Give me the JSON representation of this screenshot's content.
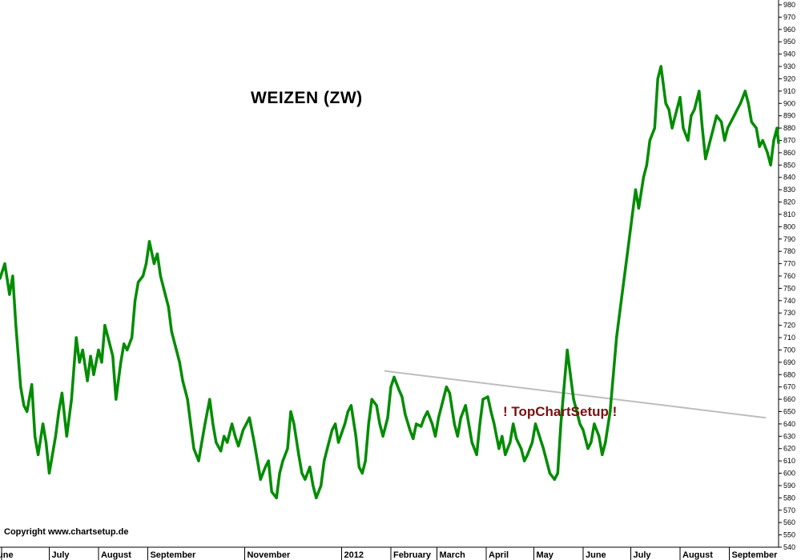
{
  "chart_data": {
    "type": "line",
    "title": "WEIZEN (ZW)",
    "copyright": "Copyright www.chartsetup.de",
    "watermark": "! TopChartSetup !",
    "ylim": [
      540,
      980
    ],
    "y_tick_step": 10,
    "x_tick_labels": [
      {
        "label": "une",
        "date": "2011-06-01"
      },
      {
        "label": "July",
        "date": "2011-07-01"
      },
      {
        "label": "August",
        "date": "2011-08-01"
      },
      {
        "label": "September",
        "date": "2011-09-01"
      },
      {
        "label": "November",
        "date": "2011-11-01"
      },
      {
        "label": "2012",
        "date": "2012-01-01"
      },
      {
        "label": "February",
        "date": "2012-02-01"
      },
      {
        "label": "March",
        "date": "2012-03-01"
      },
      {
        "label": "April",
        "date": "2012-04-01"
      },
      {
        "label": "May",
        "date": "2012-05-01"
      },
      {
        "label": "June",
        "date": "2012-06-01"
      },
      {
        "label": "July",
        "date": "2012-07-01"
      },
      {
        "label": "August",
        "date": "2012-08-01"
      },
      {
        "label": "September",
        "date": "2012-09-01"
      }
    ],
    "x_range": [
      "2011-05-31",
      "2012-10-02"
    ],
    "series": [
      {
        "color": "#008c00",
        "points": [
          [
            "2011-05-31",
            758
          ],
          [
            "2011-06-03",
            770
          ],
          [
            "2011-06-06",
            745
          ],
          [
            "2011-06-08",
            760
          ],
          [
            "2011-06-10",
            720
          ],
          [
            "2011-06-13",
            670
          ],
          [
            "2011-06-15",
            655
          ],
          [
            "2011-06-17",
            650
          ],
          [
            "2011-06-20",
            672
          ],
          [
            "2011-06-22",
            630
          ],
          [
            "2011-06-24",
            615
          ],
          [
            "2011-06-27",
            640
          ],
          [
            "2011-06-29",
            625
          ],
          [
            "2011-07-01",
            600
          ],
          [
            "2011-07-05",
            630
          ],
          [
            "2011-07-07",
            650
          ],
          [
            "2011-07-09",
            665
          ],
          [
            "2011-07-12",
            630
          ],
          [
            "2011-07-15",
            660
          ],
          [
            "2011-07-18",
            710
          ],
          [
            "2011-07-20",
            690
          ],
          [
            "2011-07-22",
            700
          ],
          [
            "2011-07-25",
            675
          ],
          [
            "2011-07-27",
            695
          ],
          [
            "2011-07-29",
            680
          ],
          [
            "2011-08-01",
            700
          ],
          [
            "2011-08-03",
            690
          ],
          [
            "2011-08-05",
            720
          ],
          [
            "2011-08-08",
            705
          ],
          [
            "2011-08-10",
            695
          ],
          [
            "2011-08-12",
            660
          ],
          [
            "2011-08-15",
            690
          ],
          [
            "2011-08-17",
            705
          ],
          [
            "2011-08-19",
            700
          ],
          [
            "2011-08-22",
            710
          ],
          [
            "2011-08-24",
            740
          ],
          [
            "2011-08-26",
            755
          ],
          [
            "2011-08-29",
            760
          ],
          [
            "2011-08-31",
            770
          ],
          [
            "2011-09-02",
            788
          ],
          [
            "2011-09-05",
            770
          ],
          [
            "2011-09-07",
            778
          ],
          [
            "2011-09-09",
            760
          ],
          [
            "2011-09-12",
            745
          ],
          [
            "2011-09-14",
            735
          ],
          [
            "2011-09-16",
            715
          ],
          [
            "2011-09-19",
            700
          ],
          [
            "2011-09-21",
            690
          ],
          [
            "2011-09-23",
            675
          ],
          [
            "2011-09-26",
            660
          ],
          [
            "2011-09-28",
            640
          ],
          [
            "2011-09-30",
            620
          ],
          [
            "2011-10-03",
            610
          ],
          [
            "2011-10-05",
            625
          ],
          [
            "2011-10-07",
            640
          ],
          [
            "2011-10-10",
            660
          ],
          [
            "2011-10-12",
            640
          ],
          [
            "2011-10-14",
            625
          ],
          [
            "2011-10-17",
            618
          ],
          [
            "2011-10-19",
            630
          ],
          [
            "2011-10-21",
            625
          ],
          [
            "2011-10-24",
            640
          ],
          [
            "2011-10-26",
            630
          ],
          [
            "2011-10-28",
            622
          ],
          [
            "2011-10-31",
            635
          ],
          [
            "2011-11-02",
            640
          ],
          [
            "2011-11-04",
            645
          ],
          [
            "2011-11-07",
            625
          ],
          [
            "2011-11-09",
            610
          ],
          [
            "2011-11-11",
            595
          ],
          [
            "2011-11-14",
            605
          ],
          [
            "2011-11-16",
            610
          ],
          [
            "2011-11-18",
            585
          ],
          [
            "2011-11-21",
            580
          ],
          [
            "2011-11-23",
            600
          ],
          [
            "2011-11-25",
            610
          ],
          [
            "2011-11-28",
            620
          ],
          [
            "2011-11-30",
            650
          ],
          [
            "2011-12-02",
            640
          ],
          [
            "2011-12-05",
            615
          ],
          [
            "2011-12-07",
            600
          ],
          [
            "2011-12-09",
            595
          ],
          [
            "2011-12-12",
            605
          ],
          [
            "2011-12-14",
            590
          ],
          [
            "2011-12-16",
            580
          ],
          [
            "2011-12-19",
            590
          ],
          [
            "2011-12-21",
            610
          ],
          [
            "2011-12-23",
            620
          ],
          [
            "2011-12-26",
            635
          ],
          [
            "2011-12-28",
            640
          ],
          [
            "2011-12-30",
            625
          ],
          [
            "2012-01-03",
            640
          ],
          [
            "2012-01-05",
            650
          ],
          [
            "2012-01-07",
            655
          ],
          [
            "2012-01-10",
            630
          ],
          [
            "2012-01-12",
            605
          ],
          [
            "2012-01-14",
            600
          ],
          [
            "2012-01-16",
            610
          ],
          [
            "2012-01-18",
            640
          ],
          [
            "2012-01-20",
            660
          ],
          [
            "2012-01-23",
            655
          ],
          [
            "2012-01-25",
            640
          ],
          [
            "2012-01-27",
            630
          ],
          [
            "2012-01-30",
            645
          ],
          [
            "2012-02-01",
            670
          ],
          [
            "2012-02-03",
            678
          ],
          [
            "2012-02-06",
            668
          ],
          [
            "2012-02-08",
            662
          ],
          [
            "2012-02-10",
            648
          ],
          [
            "2012-02-13",
            635
          ],
          [
            "2012-02-15",
            628
          ],
          [
            "2012-02-17",
            640
          ],
          [
            "2012-02-20",
            638
          ],
          [
            "2012-02-22",
            645
          ],
          [
            "2012-02-24",
            650
          ],
          [
            "2012-02-27",
            640
          ],
          [
            "2012-02-29",
            630
          ],
          [
            "2012-03-02",
            645
          ],
          [
            "2012-03-05",
            660
          ],
          [
            "2012-03-07",
            670
          ],
          [
            "2012-03-09",
            665
          ],
          [
            "2012-03-12",
            640
          ],
          [
            "2012-03-14",
            630
          ],
          [
            "2012-03-16",
            645
          ],
          [
            "2012-03-19",
            655
          ],
          [
            "2012-03-21",
            640
          ],
          [
            "2012-03-23",
            625
          ],
          [
            "2012-03-26",
            615
          ],
          [
            "2012-03-28",
            640
          ],
          [
            "2012-03-30",
            660
          ],
          [
            "2012-04-02",
            662
          ],
          [
            "2012-04-04",
            650
          ],
          [
            "2012-04-06",
            640
          ],
          [
            "2012-04-09",
            620
          ],
          [
            "2012-04-11",
            630
          ],
          [
            "2012-04-13",
            615
          ],
          [
            "2012-04-16",
            625
          ],
          [
            "2012-04-18",
            640
          ],
          [
            "2012-04-20",
            628
          ],
          [
            "2012-04-23",
            620
          ],
          [
            "2012-04-25",
            610
          ],
          [
            "2012-04-27",
            615
          ],
          [
            "2012-04-30",
            625
          ],
          [
            "2012-05-02",
            640
          ],
          [
            "2012-05-04",
            632
          ],
          [
            "2012-05-07",
            620
          ],
          [
            "2012-05-09",
            610
          ],
          [
            "2012-05-11",
            600
          ],
          [
            "2012-05-14",
            595
          ],
          [
            "2012-05-16",
            600
          ],
          [
            "2012-05-18",
            640
          ],
          [
            "2012-05-20",
            670
          ],
          [
            "2012-05-22",
            700
          ],
          [
            "2012-05-24",
            680
          ],
          [
            "2012-05-26",
            660
          ],
          [
            "2012-05-28",
            650
          ],
          [
            "2012-05-30",
            640
          ],
          [
            "2012-06-01",
            635
          ],
          [
            "2012-06-04",
            620
          ],
          [
            "2012-06-06",
            625
          ],
          [
            "2012-06-08",
            640
          ],
          [
            "2012-06-11",
            630
          ],
          [
            "2012-06-13",
            615
          ],
          [
            "2012-06-15",
            625
          ],
          [
            "2012-06-18",
            650
          ],
          [
            "2012-06-20",
            680
          ],
          [
            "2012-06-22",
            710
          ],
          [
            "2012-06-25",
            740
          ],
          [
            "2012-06-27",
            760
          ],
          [
            "2012-06-29",
            780
          ],
          [
            "2012-07-02",
            810
          ],
          [
            "2012-07-04",
            830
          ],
          [
            "2012-07-06",
            815
          ],
          [
            "2012-07-09",
            840
          ],
          [
            "2012-07-11",
            850
          ],
          [
            "2012-07-13",
            870
          ],
          [
            "2012-07-16",
            880
          ],
          [
            "2012-07-18",
            920
          ],
          [
            "2012-07-20",
            930
          ],
          [
            "2012-07-23",
            900
          ],
          [
            "2012-07-25",
            895
          ],
          [
            "2012-07-27",
            880
          ],
          [
            "2012-07-30",
            895
          ],
          [
            "2012-08-01",
            905
          ],
          [
            "2012-08-03",
            880
          ],
          [
            "2012-08-06",
            870
          ],
          [
            "2012-08-08",
            890
          ],
          [
            "2012-08-10",
            895
          ],
          [
            "2012-08-13",
            910
          ],
          [
            "2012-08-15",
            880
          ],
          [
            "2012-08-17",
            855
          ],
          [
            "2012-08-20",
            870
          ],
          [
            "2012-08-22",
            880
          ],
          [
            "2012-08-24",
            890
          ],
          [
            "2012-08-27",
            885
          ],
          [
            "2012-08-29",
            870
          ],
          [
            "2012-08-31",
            880
          ],
          [
            "2012-09-04",
            890
          ],
          [
            "2012-09-06",
            895
          ],
          [
            "2012-09-08",
            900
          ],
          [
            "2012-09-11",
            910
          ],
          [
            "2012-09-13",
            900
          ],
          [
            "2012-09-15",
            885
          ],
          [
            "2012-09-18",
            880
          ],
          [
            "2012-09-20",
            865
          ],
          [
            "2012-09-22",
            870
          ],
          [
            "2012-09-25",
            860
          ],
          [
            "2012-09-27",
            850
          ],
          [
            "2012-09-29",
            870
          ],
          [
            "2012-10-01",
            880
          ],
          [
            "2012-10-02",
            868
          ]
        ]
      }
    ],
    "trendline": {
      "color": "#bdbdbd",
      "start": [
        "2012-01-28",
        683
      ],
      "end": [
        "2012-09-24",
        645
      ]
    }
  }
}
